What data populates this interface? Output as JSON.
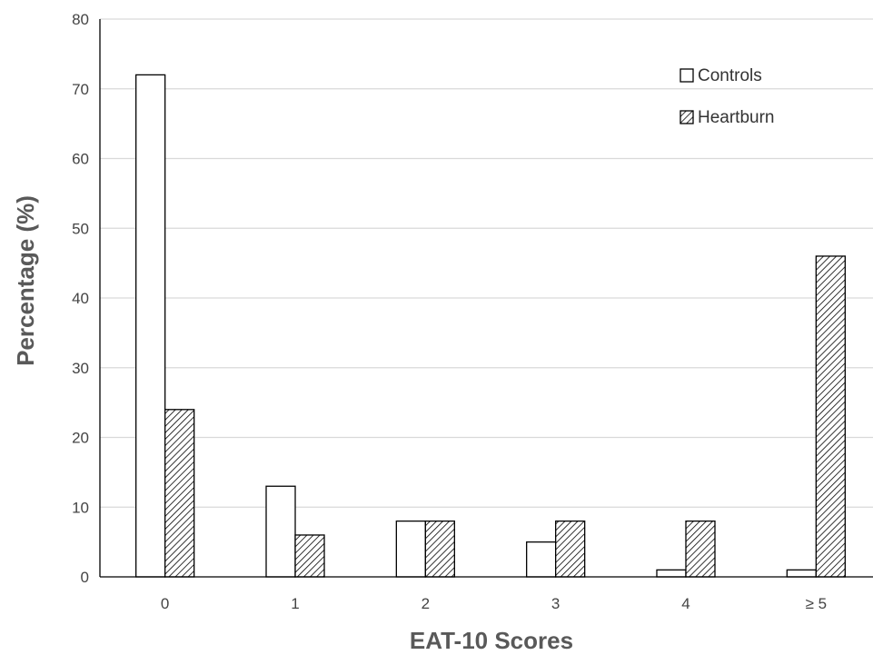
{
  "chart_data": {
    "type": "bar",
    "xlabel": "EAT-10 Scores",
    "ylabel": "Percentage (%)",
    "ylim": [
      0,
      80
    ],
    "yticks": [
      0,
      10,
      20,
      30,
      40,
      50,
      60,
      70,
      80
    ],
    "grid": true,
    "legend_position": "top-right",
    "categories": [
      "0",
      "1",
      "2",
      "3",
      "4",
      "≥ 5"
    ],
    "series": [
      {
        "name": "Controls",
        "pattern": "solid-white",
        "values": [
          72,
          13,
          8,
          5,
          1,
          1
        ]
      },
      {
        "name": "Heartburn",
        "pattern": "diagonal-hatch",
        "values": [
          24,
          6,
          8,
          8,
          8,
          46
        ]
      }
    ]
  },
  "colors": {
    "bar_stroke": "#000000",
    "grid": "#d9d9d9",
    "axis": "#000000",
    "controls_fill": "#ffffff",
    "hatch_line": "#000000"
  }
}
